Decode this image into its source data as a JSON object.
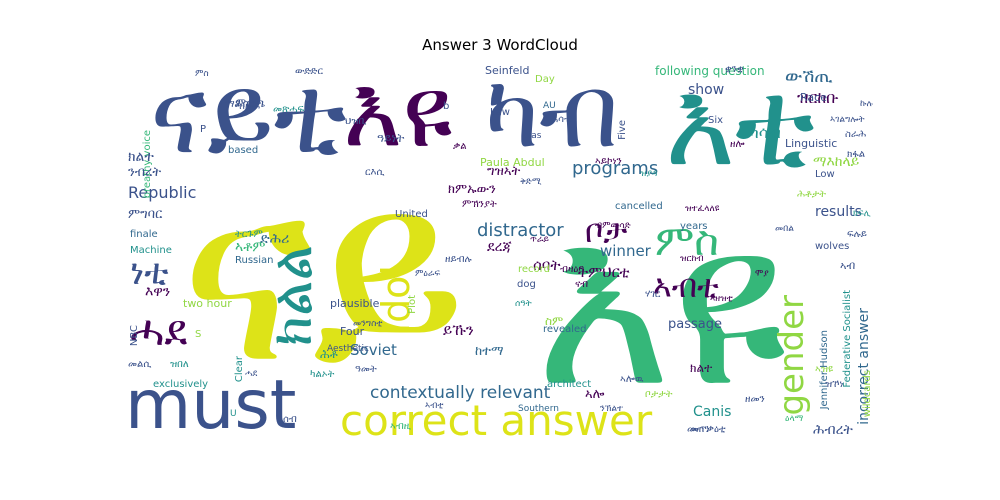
{
  "figure": {
    "title": "Answer 3 WordCloud"
  },
  "palette": {
    "dark_purple": "#440154",
    "indigo": "#3b528b",
    "blue": "#31688e",
    "teal": "#21918c",
    "green": "#35b779",
    "lime": "#90d743",
    "yellow": "#dde318"
  },
  "words": {
    "w1": "ናይ",
    "w2": "ናይቲ",
    "w3": "እዩ",
    "w4": "ካብ",
    "w5": "እቲ",
    "w6": "እዩ",
    "w7": "must",
    "w8": "correct answer",
    "w9": "gender",
    "w10": "Idol",
    "w11": "ክልል",
    "w12": "ሓደ",
    "w13": "ነቲ",
    "w14": "ምስ",
    "w15": "ቦታ",
    "w16": "ኣብቲ",
    "w17": "programs",
    "w18": "distractor",
    "w19": "contextually relevant",
    "w20": "Republic",
    "w21": "ውሽጢ",
    "w22": "ዝርከቡ",
    "w23": "ካሳብ",
    "w24": "ማእከላይ",
    "w25": "results",
    "w26": "incorrect answer",
    "w27": "passage",
    "w28": "winner",
    "w29": "show",
    "w30": "Soviet",
    "w31": "Canis",
    "w32": "ሕብረት",
    "w33": "ይኹን",
    "w34": "ትምህርቲ",
    "w35": "ሰባት",
    "w36": "following question",
    "w37": "Seinfeld",
    "w38": "Paula Abdul",
    "w39": "Jennifer Hudson",
    "w40": "Federative Socialist",
    "w41": "Linguistic",
    "w42": "Race",
    "w43": "Machine",
    "w44": "Russian",
    "w45": "United",
    "w46": "two hour",
    "w47": "plausible",
    "w48": "Plot",
    "w49": "revealed",
    "w50": "Four",
    "w51": "architect",
    "w52": "exclusively",
    "w53": "Aesthetic",
    "w54": "breathy voice",
    "w55": "cancelled",
    "w56": "Low",
    "w57": "wolves",
    "w58": "years",
    "w59": "finale",
    "w60": "Southern",
    "w61": "wildcards",
    "w62": "NBC",
    "w63": "record",
    "w64": "dog",
    "w65": "Clear",
    "w66": "Law",
    "w67": "Five",
    "w68": "Day",
    "w69": "Six",
    "w70": "based",
    "w71": "ዓይነት",
    "w72": "ሕቶ",
    "w73": "ደረጃ",
    "w74": "ክምኡውን",
    "w75": "ምግባር",
    "w76": "ንብረት",
    "w77": "ክልተ",
    "w78": "እዋን",
    "w79": "ዝበለ",
    "w80": "ማሕበር",
    "w81": "ዓመት",
    "w82": "ሓሳብ",
    "w83": "ቃል",
    "w84": "ምርጫ",
    "w85": "ምኽንያት",
    "w86": "ግዝኣት",
    "w87": "ኣሎ",
    "w88": "ሕቶታት",
    "w89": "ትርጉም",
    "w90": "ከተማ",
    "w91": "ስም",
    "w92": "መልሲ",
    "w93": "ድሕሪ",
    "w94": "ኣቶም",
    "w95": "ውድድር",
    "w96": "ብዙሕ",
    "w97": "ኣገልግሎት",
    "w98": "ኣብ",
    "w99": "ናብ",
    "w100": "ካልኦት",
    "w101": "ዘሎ",
    "w102": "ስራሕ",
    "w103": "ኣሎዉ",
    "w104": "ሃገር",
    "w105": "ቦታታት",
    "w106": "መጠን",
    "w107": "ኣዝዩ",
    "w108": "ዝኾነ",
    "w109": "መጽሓፍ",
    "w110": "ህዝቢ",
    "w111": "ኣይኮነን",
    "w112": "ብዛዕባ",
    "w113": "ዘይብሉ",
    "w114": "መንግስቲ",
    "w115": "ርእሲ",
    "w116": "ቋንቋ",
    "w117": "ሰብ",
    "w118": "ኣብዚ",
    "w119": "ፍሉይ",
    "w120": "ክፋል",
    "w121": "ኣዘዝቲ",
    "w122": "ዝተፈላለዩ",
    "w123": "መጥቃዕቲ",
    "w124": "AU",
    "w125": "bias",
    "w126": "b",
    "w127": "P",
    "w128": "U",
    "w129": "S",
    "w130": "ክልተ",
    "w131": "ብምውሳድ",
    "w132": "ዝርከብ",
    "w133": "ኣብቲ",
    "w134": "ምስ",
    "w135": "ሓደ",
    "w136": "ቅድሚ",
    "w137": "ሰዓት",
    "w138": "ምዕራፍ",
    "w139": "መበል",
    "w140": "ዘመን",
    "w141": "ክፍሊ",
    "w142": "ኩሉ",
    "w143": "ዝያዳ",
    "w144": "ጥራይ",
    "w145": "ንኽልተ",
    "w146": "ሞያ",
    "w147": "ዕላማ"
  }
}
